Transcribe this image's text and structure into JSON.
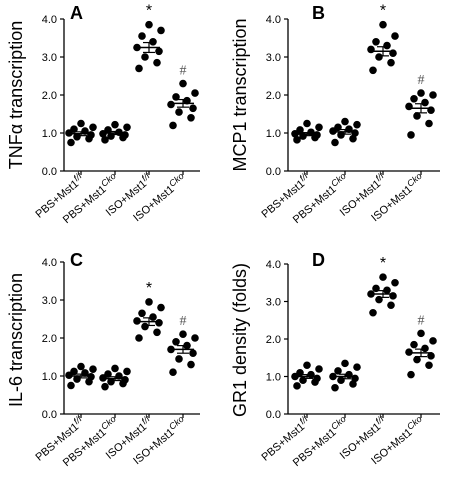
{
  "chart_data": [
    {
      "type": "scatter",
      "panel": "A",
      "ylabel": "TNFα transcription",
      "ylim": [
        0,
        4.0
      ],
      "yticks": [
        "0.0",
        "1.0",
        "2.0",
        "3.0",
        "4.0"
      ],
      "categories": [
        "PBS+Mst1f/f",
        "PBS+Mst1Cko",
        "ISO+Mst1f/f",
        "ISO+Mst1Cko"
      ],
      "cat_base": [
        "PBS+Mst1",
        "PBS+Mst1",
        "ISO+Mst1",
        "ISO+Mst1"
      ],
      "cat_sup": [
        "f/f",
        "Cko",
        "f/f",
        "Cko"
      ],
      "groups": [
        {
          "values": [
            0.75,
            0.85,
            0.9,
            0.95,
            1.0,
            1.05,
            1.1,
            1.15,
            1.25
          ],
          "mean": 0.98,
          "sem": 0.05,
          "mark": ""
        },
        {
          "values": [
            0.82,
            0.88,
            0.92,
            0.95,
            0.98,
            1.02,
            1.08,
            1.15,
            1.22
          ],
          "mean": 1.0,
          "sem": 0.04,
          "mark": ""
        },
        {
          "values": [
            2.7,
            2.85,
            3.0,
            3.15,
            3.25,
            3.4,
            3.55,
            3.7,
            3.85
          ],
          "mean": 3.25,
          "sem": 0.13,
          "mark": "*"
        },
        {
          "values": [
            1.2,
            1.4,
            1.55,
            1.65,
            1.75,
            1.85,
            1.95,
            2.05,
            2.3
          ],
          "mean": 1.78,
          "sem": 0.1,
          "mark": "#"
        }
      ]
    },
    {
      "type": "scatter",
      "panel": "B",
      "ylabel": "MCP1 transcription",
      "ylim": [
        0,
        4.0
      ],
      "yticks": [
        "0.0",
        "1.0",
        "2.0",
        "3.0",
        "4.0"
      ],
      "categories": [
        "PBS+Mst1f/f",
        "PBS+Mst1Cko",
        "ISO+Mst1f/f",
        "ISO+Mst1Cko"
      ],
      "cat_base": [
        "PBS+Mst1",
        "PBS+Mst1",
        "ISO+Mst1",
        "ISO+Mst1"
      ],
      "cat_sup": [
        "f/f",
        "Cko",
        "f/f",
        "Cko"
      ],
      "groups": [
        {
          "values": [
            0.82,
            0.88,
            0.92,
            0.95,
            0.98,
            1.02,
            1.08,
            1.15,
            1.25
          ],
          "mean": 0.97,
          "sem": 0.04,
          "mark": ""
        },
        {
          "values": [
            0.75,
            0.85,
            0.95,
            1.0,
            1.05,
            1.1,
            1.15,
            1.22,
            1.3
          ],
          "mean": 1.03,
          "sem": 0.06,
          "mark": ""
        },
        {
          "values": [
            2.65,
            2.85,
            3.0,
            3.1,
            3.2,
            3.3,
            3.4,
            3.55,
            3.85
          ],
          "mean": 3.15,
          "sem": 0.12,
          "mark": "*"
        },
        {
          "values": [
            0.95,
            1.25,
            1.45,
            1.6,
            1.7,
            1.8,
            1.9,
            2.0,
            2.05
          ],
          "mean": 1.65,
          "sem": 0.12,
          "mark": "#"
        }
      ]
    },
    {
      "type": "scatter",
      "panel": "C",
      "ylabel": "IL-6 transcription",
      "ylim": [
        0,
        4.0
      ],
      "yticks": [
        "0.0",
        "1.0",
        "2.0",
        "3.0",
        "4.0"
      ],
      "categories": [
        "PBS+Mst1f/f",
        "PBS+Mst1Cko",
        "ISO+Mst1f/f",
        "ISO+Mst1Cko"
      ],
      "cat_base": [
        "PBS+Mst1",
        "PBS+Mst1",
        "ISO+Mst1",
        "ISO+Mst1"
      ],
      "cat_sup": [
        "f/f",
        "Cko",
        "f/f",
        "Cko"
      ],
      "groups": [
        {
          "values": [
            0.75,
            0.85,
            0.92,
            0.98,
            1.02,
            1.08,
            1.12,
            1.18,
            1.25
          ],
          "mean": 1.0,
          "sem": 0.05,
          "mark": ""
        },
        {
          "values": [
            0.72,
            0.8,
            0.85,
            0.9,
            0.95,
            1.0,
            1.05,
            1.12,
            1.2
          ],
          "mean": 0.93,
          "sem": 0.05,
          "mark": ""
        },
        {
          "values": [
            2.0,
            2.15,
            2.3,
            2.4,
            2.45,
            2.55,
            2.65,
            2.8,
            2.95
          ],
          "mean": 2.43,
          "sem": 0.1,
          "mark": "*"
        },
        {
          "values": [
            1.1,
            1.3,
            1.45,
            1.6,
            1.7,
            1.8,
            1.9,
            2.0,
            2.1
          ],
          "mean": 1.7,
          "sem": 0.1,
          "mark": "#"
        }
      ]
    },
    {
      "type": "scatter",
      "panel": "D",
      "ylabel": "GR1 density (folds)",
      "ylim": [
        0,
        4.0
      ],
      "yticks": [
        "0.0",
        "1.0",
        "2.0",
        "3.0",
        "4.0"
      ],
      "categories": [
        "PBS+Mst1f/f",
        "PBS+Mst1Cko",
        "ISO+Mst1f/f",
        "ISO+Mst1Cko"
      ],
      "cat_base": [
        "PBS+Mst1",
        "PBS+Mst1",
        "ISO+Mst1",
        "ISO+Mst1"
      ],
      "cat_sup": [
        "f/f",
        "Cko",
        "f/f",
        "Cko"
      ],
      "groups": [
        {
          "values": [
            0.75,
            0.85,
            0.9,
            0.95,
            1.0,
            1.05,
            1.1,
            1.2,
            1.3
          ],
          "mean": 1.0,
          "sem": 0.05,
          "mark": ""
        },
        {
          "values": [
            0.7,
            0.8,
            0.9,
            0.95,
            1.0,
            1.05,
            1.15,
            1.25,
            1.35
          ],
          "mean": 1.0,
          "sem": 0.06,
          "mark": ""
        },
        {
          "values": [
            2.7,
            2.9,
            3.05,
            3.15,
            3.2,
            3.3,
            3.35,
            3.5,
            3.65
          ],
          "mean": 3.2,
          "sem": 0.09,
          "mark": "*"
        },
        {
          "values": [
            1.05,
            1.3,
            1.45,
            1.55,
            1.65,
            1.75,
            1.85,
            1.95,
            2.15
          ],
          "mean": 1.63,
          "sem": 0.1,
          "mark": "#"
        }
      ]
    }
  ]
}
